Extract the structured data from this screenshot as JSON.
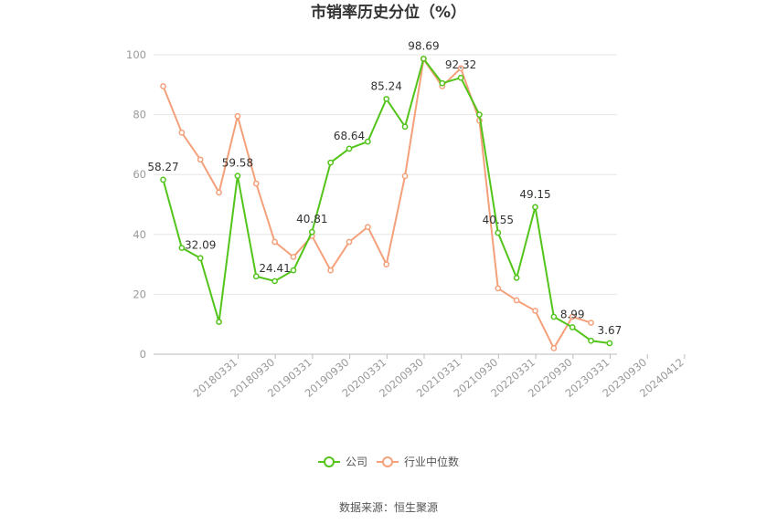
{
  "chart_data": {
    "type": "line",
    "title": "市销率历史分位（%）",
    "source": "数据来源：恒生聚源",
    "ylim": [
      0,
      100
    ],
    "yticks": [
      0,
      20,
      40,
      60,
      80,
      100
    ],
    "x_tick_labels": [
      "20180331",
      "20180930",
      "20190331",
      "20190930",
      "20200331",
      "20200930",
      "20210331",
      "20210930",
      "20220331",
      "20220930",
      "20230331",
      "20230930",
      "20240412"
    ],
    "grid": true,
    "legend_position": "bottom",
    "series": [
      {
        "name": "公司",
        "color": "#52c41a",
        "values": [
          58.27,
          35.5,
          32.09,
          10.8,
          59.58,
          26.0,
          24.41,
          28.0,
          40.81,
          64.0,
          68.64,
          71.0,
          85.24,
          76.0,
          98.69,
          90.5,
          92.32,
          80.0,
          40.55,
          25.5,
          49.15,
          12.5,
          8.99,
          4.5,
          3.67
        ],
        "labels": {
          "0": "58.27",
          "2": "32.09",
          "4": "59.58",
          "6": "24.41",
          "8": "40.81",
          "10": "68.64",
          "12": "85.24",
          "14": "98.69",
          "16": "92.32",
          "18": "40.55",
          "20": "49.15",
          "22": "8.99",
          "24": "3.67"
        }
      },
      {
        "name": "行业中位数",
        "color": "#f4a07a",
        "values": [
          89.5,
          74.0,
          65.0,
          54.0,
          79.5,
          57.0,
          37.5,
          32.5,
          39.5,
          28.0,
          37.5,
          42.5,
          30.0,
          59.5,
          98.5,
          89.5,
          95.5,
          78.0,
          22.0,
          18.0,
          14.5,
          2.0,
          12.5,
          10.5,
          null
        ]
      }
    ]
  }
}
